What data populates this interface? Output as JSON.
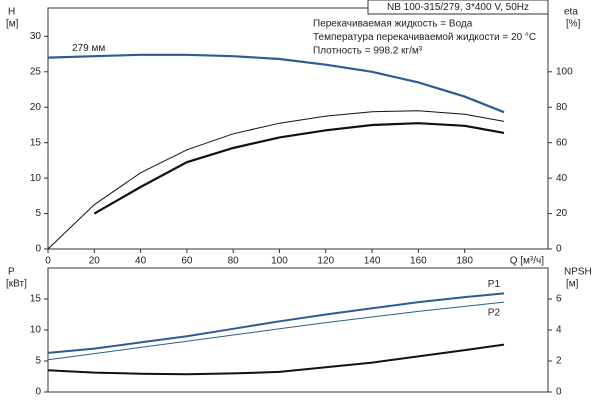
{
  "chart_data": [
    {
      "type": "line",
      "title": "NB 100-315/279, 3*400 V, 50Hz",
      "annotations": [
        "Перекачиваемая жидкость = Вода",
        "Температура перекачиваемой жидкости = 20 °C",
        "Плотность = 998.2 кг/м³"
      ],
      "xlabel": "Q [м³/ч]",
      "ylabel": "H",
      "ylabel_unit": "[м]",
      "y2label": "eta",
      "y2label_unit": "[%]",
      "x": [
        0,
        20,
        40,
        60,
        80,
        100,
        120,
        140,
        160,
        180,
        197
      ],
      "xlim": [
        0,
        216
      ],
      "xticks": [
        0,
        20,
        40,
        60,
        80,
        100,
        120,
        140,
        160,
        180
      ],
      "ylim": [
        0,
        34
      ],
      "yticks": [
        0,
        5,
        10,
        15,
        20,
        25,
        30
      ],
      "y2lim": [
        0,
        136
      ],
      "y2ticks": [
        0,
        20,
        40,
        60,
        80,
        100
      ],
      "grid": false,
      "series": [
        {
          "name": "279 мм",
          "color": "#2b5d94",
          "width": 2.2,
          "values": [
            27.0,
            27.2,
            27.4,
            27.4,
            27.2,
            26.8,
            26.0,
            25.0,
            23.5,
            21.5,
            19.3
          ]
        },
        {
          "color": "#111111",
          "width": 1,
          "axis": "y2",
          "values": [
            0,
            25,
            43,
            56,
            65,
            71,
            75,
            77.5,
            78,
            76,
            72
          ]
        },
        {
          "color": "#111111",
          "width": 2.2,
          "axis": "y2",
          "values": [
            null,
            20,
            35,
            49,
            57,
            63,
            67,
            70,
            71,
            69.5,
            65.5
          ]
        }
      ]
    },
    {
      "type": "line",
      "ylabel": "P",
      "ylabel_unit": "[кВт]",
      "y2label": "NPSH",
      "y2label_unit": "[м]",
      "x": [
        0,
        20,
        40,
        60,
        80,
        100,
        120,
        140,
        160,
        180,
        197
      ],
      "xlim": [
        0,
        216
      ],
      "ylim": [
        0,
        20
      ],
      "yticks": [
        0,
        5,
        10,
        15
      ],
      "y2lim": [
        0,
        8
      ],
      "y2ticks": [
        0,
        2,
        4,
        6
      ],
      "grid": false,
      "series": [
        {
          "name": "P1",
          "color": "#2b5d94",
          "width": 2,
          "values": [
            6.3,
            7.0,
            8.0,
            9.0,
            10.2,
            11.4,
            12.5,
            13.5,
            14.5,
            15.3,
            15.9
          ]
        },
        {
          "name": "P2",
          "color": "#2b5d94",
          "width": 1,
          "values": [
            5.2,
            6.2,
            7.2,
            8.2,
            9.2,
            10.2,
            11.2,
            12.1,
            13.0,
            13.8,
            14.5
          ]
        },
        {
          "color": "#111111",
          "width": 2,
          "axis": "y2",
          "values": [
            1.4,
            1.25,
            1.18,
            1.15,
            1.2,
            1.3,
            1.6,
            1.9,
            2.3,
            2.7,
            3.06
          ]
        }
      ]
    }
  ]
}
